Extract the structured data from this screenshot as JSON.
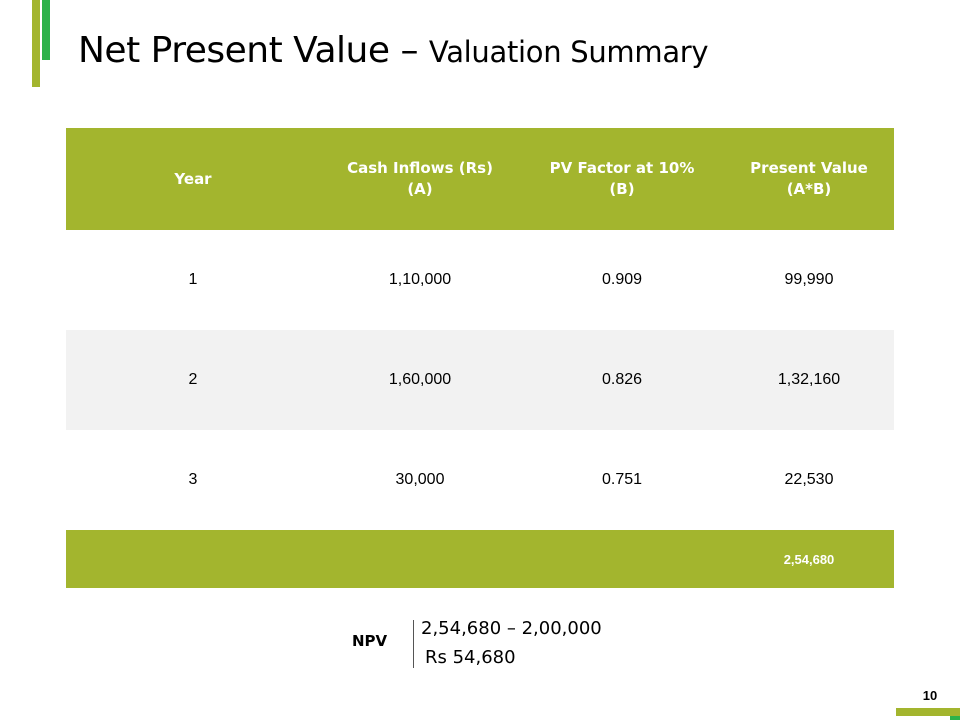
{
  "title": {
    "main": "Net Present Value – ",
    "sub": "Valuation Summary"
  },
  "colors": {
    "accent_olive": "#a3b52e",
    "accent_green": "#2db24a",
    "row_alt": "#f2f2f2"
  },
  "table": {
    "headers": [
      [
        "Year"
      ],
      [
        "Cash Inflows (Rs)",
        "(A)"
      ],
      [
        "PV Factor at 10%",
        "(B)"
      ],
      [
        "Present Value",
        "(A*B)"
      ]
    ],
    "rows": [
      [
        "1",
        "1,10,000",
        "0.909",
        "99,990"
      ],
      [
        "2",
        "1,60,000",
        "0.826",
        "1,32,160"
      ],
      [
        "3",
        "30,000",
        "0.751",
        "22,530"
      ]
    ],
    "total": [
      "",
      "",
      "",
      "2,54,680"
    ]
  },
  "npv": {
    "label": "NPV",
    "line1": "2,54,680 – 2,00,000",
    "line2": "Rs 54,680"
  },
  "page_number": "10"
}
